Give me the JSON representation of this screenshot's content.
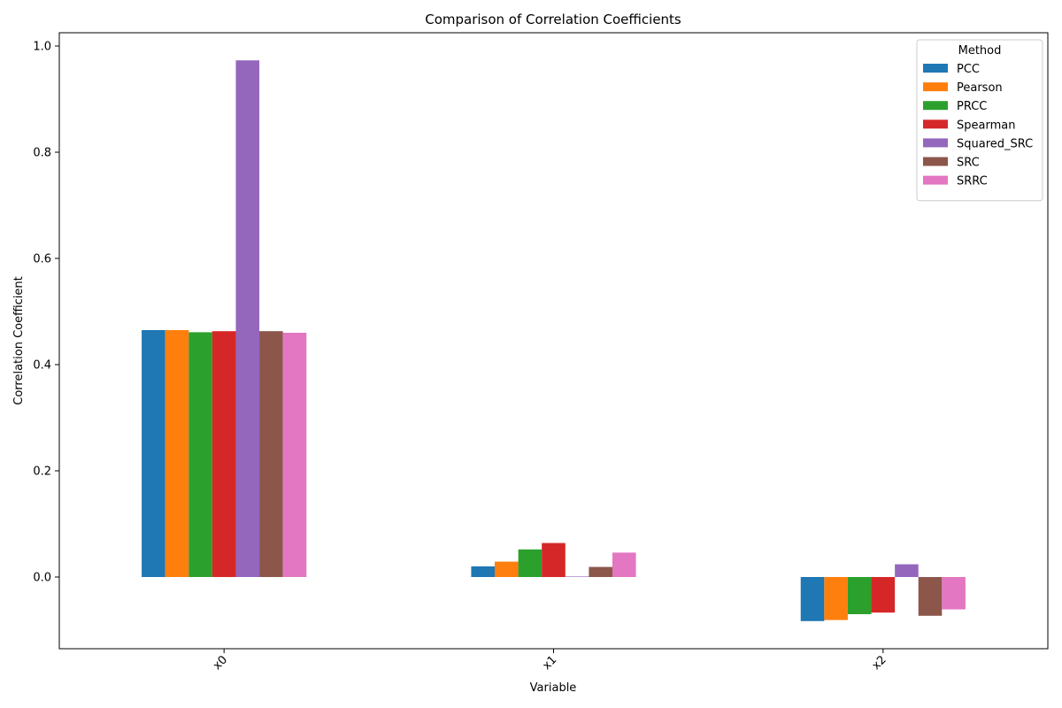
{
  "chart_data": {
    "type": "bar",
    "title": "Comparison of Correlation Coefficients",
    "xlabel": "Variable",
    "ylabel": "Correlation Coefficient",
    "categories": [
      "x0",
      "x1",
      "x2"
    ],
    "ylim": [
      -0.135,
      1.025
    ],
    "yticks": [
      "0.0",
      "0.2",
      "0.4",
      "0.6",
      "0.8",
      "1.0"
    ],
    "legend": {
      "title": "Method",
      "placement": "top-right"
    },
    "series": [
      {
        "name": "PCC",
        "color": "#1f77b4",
        "values": [
          0.465,
          0.02,
          -0.083
        ]
      },
      {
        "name": "Pearson",
        "color": "#ff7f0e",
        "values": [
          0.465,
          0.029,
          -0.081
        ]
      },
      {
        "name": "PRCC",
        "color": "#2ca02c",
        "values": [
          0.461,
          0.052,
          -0.07
        ]
      },
      {
        "name": "Spearman",
        "color": "#d62728",
        "values": [
          0.463,
          0.064,
          -0.067
        ]
      },
      {
        "name": "Squared_SRC",
        "color": "#9467bd",
        "values": [
          0.973,
          0.001,
          0.024
        ]
      },
      {
        "name": "SRC",
        "color": "#8c564b",
        "values": [
          0.463,
          0.019,
          -0.073
        ]
      },
      {
        "name": "SRRC",
        "color": "#e377c2",
        "values": [
          0.46,
          0.046,
          -0.061
        ]
      }
    ]
  }
}
